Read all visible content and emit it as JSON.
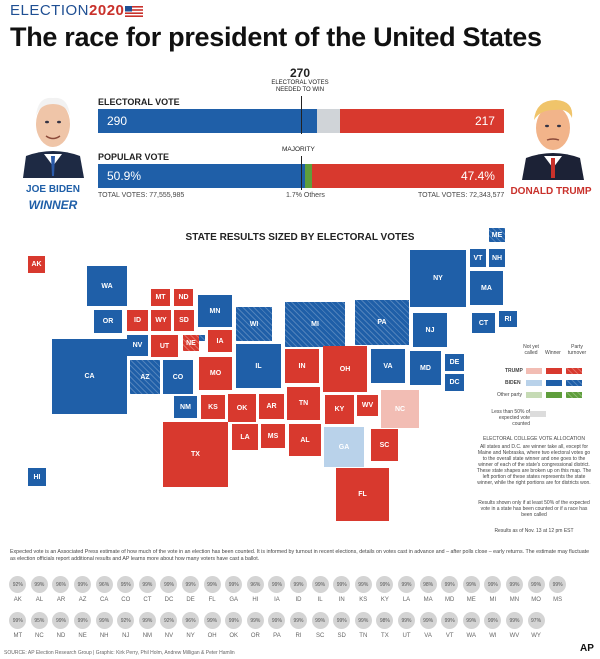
{
  "brand": {
    "label": "ELECTION",
    "year": "2020"
  },
  "headline": "The race for president of the United States",
  "candidates": {
    "biden": {
      "name": "JOE BIDEN",
      "status": "WINNER"
    },
    "trump": {
      "name": "DONALD TRUMP"
    }
  },
  "electoral": {
    "label": "ELECTORAL VOTE",
    "threshold": "270",
    "threshold_note_1": "ELECTORAL VOTES",
    "threshold_note_2": "NEEDED TO WIN",
    "biden": "290",
    "trump": "217",
    "biden_votes": 290,
    "trump_votes": 217,
    "total_votes": 538
  },
  "popular": {
    "label": "POPULAR VOTE",
    "majority_label": "MAJORITY",
    "biden": "50.9%",
    "trump": "47.4%",
    "others": "1.7% Others",
    "biden_total": "TOTAL VOTES: 77,555,985",
    "trump_total": "TOTAL VOTES: 72,343,577",
    "biden_pct": 50.9,
    "trump_pct": 47.4,
    "others_pct": 1.7
  },
  "map": {
    "title": "STATE RESULTS SIZED BY ELECTORAL VOTES",
    "states": [
      "ME",
      "VT",
      "NH",
      "AK",
      "WA",
      "NY",
      "MA",
      "MT",
      "ND",
      "OR",
      "ID",
      "WY",
      "SD",
      "MN",
      "WI",
      "MI",
      "PA",
      "CT",
      "RI",
      "NJ",
      "NV",
      "UT",
      "NE",
      "IA",
      "DE",
      "CA",
      "AZ",
      "CO",
      "MO",
      "IL",
      "IN",
      "OH",
      "VA",
      "MD",
      "DC",
      "NM",
      "KS",
      "OK",
      "AR",
      "TN",
      "KY",
      "WV",
      "NC",
      "LA",
      "MS",
      "AL",
      "SC",
      "TX",
      "GA",
      "FL",
      "HI"
    ]
  },
  "legend": {
    "not_yet_called": "Not yet called",
    "winner": "Winner",
    "party_turnover": "Party turnover",
    "trump": "TRUMP",
    "biden": "BIDEN",
    "other_party": "Other party",
    "less_than": "Less than 50% of expected vote counted"
  },
  "allocation": {
    "heading": "ELECTORAL COLLEGE VOTE ALLOCATION",
    "body": "All states and D.C. are winner take all, except for Maine and Nebraska, where two electoral votes go to the overall state winner and one goes to the winner of each of the state's congressional district. These state shapes are broken up on this map. The left portion of these states represents the state winner, while the right portions are for districts won.",
    "results_note": "Results shown only if at least 50% of the expected vote in a state has been counted or if a race has been called",
    "as_of": "Results as of Nov. 13 at 12 pm EST"
  },
  "expected_note": "Expected vote is an Associated Press estimate of how much of the vote in an election has been counted. It is informed by turnout in recent elections, details on votes cast in advance and – after polls close – early returns. The estimate may fluctuate as election officials report additional results and AP learns more about how many voters have cast a ballot.",
  "expected_row1": [
    {
      "pct": "92%",
      "st": "AK"
    },
    {
      "pct": "99%",
      "st": "AL"
    },
    {
      "pct": "96%",
      "st": "AR"
    },
    {
      "pct": "99%",
      "st": "AZ"
    },
    {
      "pct": "96%",
      "st": "CA"
    },
    {
      "pct": "95%",
      "st": "CO"
    },
    {
      "pct": "99%",
      "st": "CT"
    },
    {
      "pct": "99%",
      "st": "DC"
    },
    {
      "pct": "99%",
      "st": "DE"
    },
    {
      "pct": "99%",
      "st": "FL"
    },
    {
      "pct": "99%",
      "st": "GA"
    },
    {
      "pct": "96%",
      "st": "HI"
    },
    {
      "pct": "99%",
      "st": "IA"
    },
    {
      "pct": "99%",
      "st": "ID"
    },
    {
      "pct": "99%",
      "st": "IL"
    },
    {
      "pct": "99%",
      "st": "IN"
    },
    {
      "pct": "99%",
      "st": "KS"
    },
    {
      "pct": "99%",
      "st": "KY"
    },
    {
      "pct": "99%",
      "st": "LA"
    },
    {
      "pct": "98%",
      "st": "MA"
    },
    {
      "pct": "99%",
      "st": "MD"
    },
    {
      "pct": "99%",
      "st": "ME"
    },
    {
      "pct": "99%",
      "st": "MI"
    },
    {
      "pct": "99%",
      "st": "MN"
    },
    {
      "pct": "99%",
      "st": "MO"
    },
    {
      "pct": "99%",
      "st": "MS"
    }
  ],
  "expected_row2": [
    {
      "pct": "99%",
      "st": "MT"
    },
    {
      "pct": "95%",
      "st": "NC"
    },
    {
      "pct": "99%",
      "st": "ND"
    },
    {
      "pct": "99%",
      "st": "NE"
    },
    {
      "pct": "99%",
      "st": "NH"
    },
    {
      "pct": "92%",
      "st": "NJ"
    },
    {
      "pct": "99%",
      "st": "NM"
    },
    {
      "pct": "92%",
      "st": "NV"
    },
    {
      "pct": "96%",
      "st": "NY"
    },
    {
      "pct": "99%",
      "st": "OH"
    },
    {
      "pct": "99%",
      "st": "OK"
    },
    {
      "pct": "99%",
      "st": "OR"
    },
    {
      "pct": "99%",
      "st": "PA"
    },
    {
      "pct": "99%",
      "st": "RI"
    },
    {
      "pct": "99%",
      "st": "SC"
    },
    {
      "pct": "99%",
      "st": "SD"
    },
    {
      "pct": "99%",
      "st": "TN"
    },
    {
      "pct": "98%",
      "st": "TX"
    },
    {
      "pct": "99%",
      "st": "UT"
    },
    {
      "pct": "99%",
      "st": "VA"
    },
    {
      "pct": "99%",
      "st": "VT"
    },
    {
      "pct": "99%",
      "st": "WA"
    },
    {
      "pct": "99%",
      "st": "WI"
    },
    {
      "pct": "99%",
      "st": "WV"
    },
    {
      "pct": "97%",
      "st": "WY"
    }
  ],
  "source": "SOURCE: AP Election Research Group | Graphic: Kirk Perry, Phil Holm, Andrew Milligan & Peter Hamlin",
  "logo": "AP",
  "colors": {
    "biden": "#1f5fa8",
    "trump": "#d8392e",
    "other": "#5f9e3c",
    "undecided": "#d0d4d8"
  }
}
